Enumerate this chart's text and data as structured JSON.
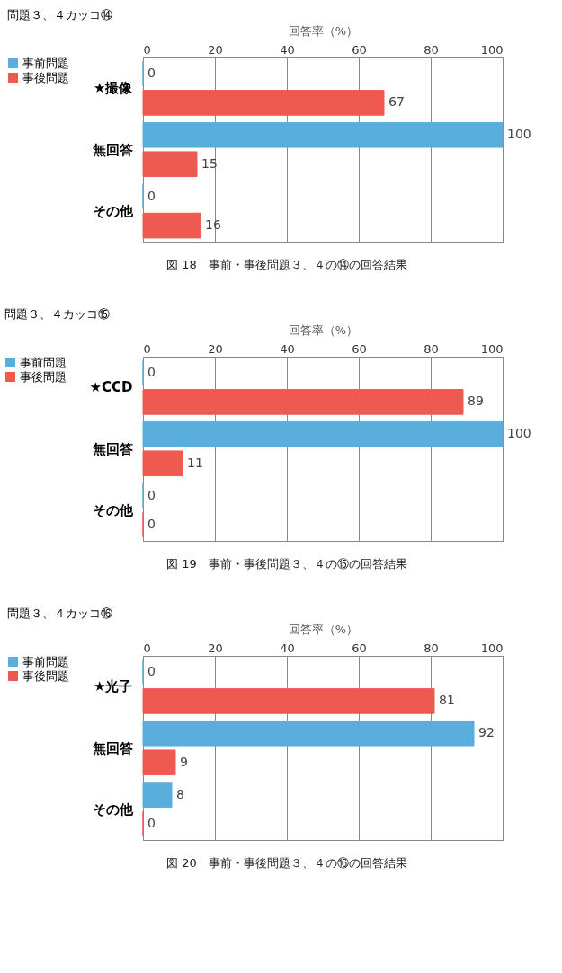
{
  "chart_data": [
    {
      "type": "bar",
      "orientation": "horizontal",
      "title": "問題３、４カッコ⑭",
      "xlabel": "回答率（%）",
      "categories": [
        "★撮像",
        "無回答",
        "その他"
      ],
      "series": [
        {
          "name": "事前問題",
          "color": "#5aaedb",
          "values": [
            0,
            100,
            0
          ]
        },
        {
          "name": "事後問題",
          "color": "#ee5a50",
          "values": [
            67,
            15,
            16
          ]
        }
      ],
      "xlim": [
        0,
        100
      ],
      "xticks": [
        0,
        20,
        40,
        60,
        80,
        100
      ],
      "grid": "x",
      "legend": "left",
      "data_labels": true,
      "annotations": [
        "図 18　事前・事後問題３、４の⑭の回答結果"
      ]
    },
    {
      "type": "bar",
      "orientation": "horizontal",
      "title": "問題３、４カッコ⑮",
      "xlabel": "回答率（%）",
      "categories": [
        "★CCD",
        "無回答",
        "その他"
      ],
      "series": [
        {
          "name": "事前問題",
          "color": "#5aaedb",
          "values": [
            0,
            100,
            0
          ]
        },
        {
          "name": "事後問題",
          "color": "#ee5a50",
          "values": [
            89,
            11,
            0
          ]
        }
      ],
      "xlim": [
        0,
        100
      ],
      "xticks": [
        0,
        20,
        40,
        60,
        80,
        100
      ],
      "grid": "x",
      "legend": "left",
      "data_labels": true,
      "annotations": [
        "図 19　事前・事後問題３、４の⑮の回答結果"
      ]
    },
    {
      "type": "bar",
      "orientation": "horizontal",
      "title": "問題３、４カッコ⑯",
      "xlabel": "回答率（%）",
      "categories": [
        "★光子",
        "無回答",
        "その他"
      ],
      "series": [
        {
          "name": "事前問題",
          "color": "#5aaedb",
          "values": [
            0,
            92,
            8
          ]
        },
        {
          "name": "事後問題",
          "color": "#ee5a50",
          "values": [
            81,
            9,
            0
          ]
        }
      ],
      "xlim": [
        0,
        100
      ],
      "xticks": [
        0,
        20,
        40,
        60,
        80,
        100
      ],
      "grid": "x",
      "legend": "left",
      "data_labels": true,
      "annotations": [
        "図 20　事前・事後問題３、４の⑯の回答結果"
      ]
    }
  ]
}
